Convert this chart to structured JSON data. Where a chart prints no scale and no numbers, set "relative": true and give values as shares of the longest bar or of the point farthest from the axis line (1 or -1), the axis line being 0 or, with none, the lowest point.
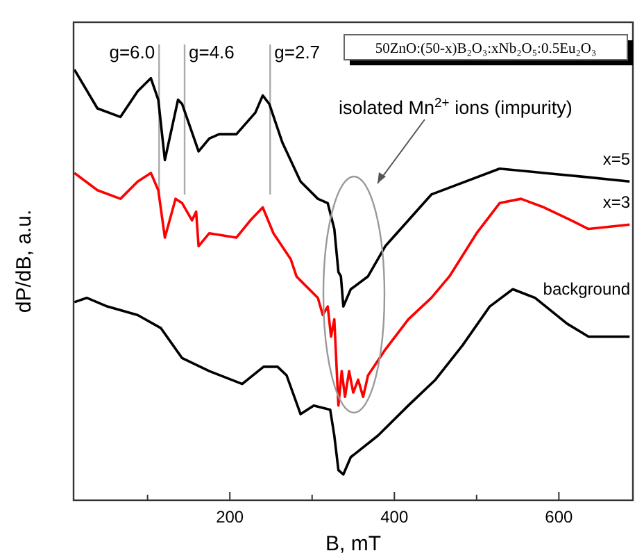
{
  "chart_data": {
    "type": "line",
    "title": "50ZnO:(50-x)B₂O₃:xNb₂O₅:0.5Eu₂O₃",
    "xlabel": "B, mT",
    "ylabel": "dP/dB, a.u.",
    "relative": true,
    "xlim": [
      10,
      690
    ],
    "xticks": [
      {
        "value": 100,
        "label": null
      },
      200,
      {
        "value": 300,
        "label": null
      },
      400,
      {
        "value": 500,
        "label": null
      },
      600
    ],
    "grid": false,
    "marker": "none",
    "line_style": "solid",
    "series": [
      {
        "name": "x=5",
        "color": "#000000",
        "x": [
          11,
          39,
          67,
          88,
          104,
          113,
          121,
          137,
          142,
          162,
          175,
          187,
          208,
          231,
          240,
          248,
          264,
          286,
          307,
          319,
          327,
          332,
          335,
          338,
          347,
          368,
          389,
          445,
          528,
          582,
          636,
          686
        ],
        "values": [
          1.0,
          0.91,
          0.89,
          0.95,
          0.98,
          0.93,
          0.79,
          0.93,
          0.92,
          0.81,
          0.84,
          0.85,
          0.85,
          0.9,
          0.94,
          0.92,
          0.83,
          0.74,
          0.7,
          0.69,
          0.63,
          0.53,
          0.52,
          0.45,
          0.49,
          0.52,
          0.59,
          0.71,
          0.77,
          0.76,
          0.75,
          0.74
        ]
      },
      {
        "name": "x=3",
        "color": "#ff0000",
        "x": [
          11,
          39,
          67,
          88,
          104,
          113,
          121,
          134,
          142,
          154,
          159,
          162,
          175,
          208,
          225,
          240,
          253,
          274,
          281,
          286,
          307,
          313,
          319,
          323,
          327,
          330,
          332,
          336,
          340,
          345,
          350,
          356,
          362,
          368,
          389,
          417,
          445,
          467,
          500,
          528,
          554,
          582,
          615,
          636,
          686
        ],
        "values": [
          0.76,
          0.72,
          0.7,
          0.74,
          0.76,
          0.72,
          0.61,
          0.7,
          0.69,
          0.65,
          0.67,
          0.59,
          0.62,
          0.61,
          0.65,
          0.68,
          0.62,
          0.56,
          0.52,
          0.51,
          0.47,
          0.43,
          0.45,
          0.38,
          0.42,
          0.3,
          0.22,
          0.3,
          0.24,
          0.3,
          0.25,
          0.28,
          0.24,
          0.29,
          0.35,
          0.42,
          0.47,
          0.52,
          0.62,
          0.69,
          0.7,
          0.68,
          0.65,
          0.63,
          0.64
        ]
      },
      {
        "name": "background",
        "color": "#000000",
        "x": [
          11,
          26,
          51,
          88,
          116,
          142,
          175,
          215,
          241,
          258,
          269,
          286,
          302,
          322,
          327,
          332,
          338,
          347,
          380,
          417,
          450,
          483,
          516,
          544,
          571,
          610,
          636,
          686
        ],
        "values": [
          0.46,
          0.47,
          0.45,
          0.43,
          0.4,
          0.33,
          0.3,
          0.27,
          0.31,
          0.31,
          0.29,
          0.2,
          0.22,
          0.21,
          0.15,
          0.07,
          0.06,
          0.1,
          0.15,
          0.22,
          0.28,
          0.36,
          0.45,
          0.49,
          0.47,
          0.41,
          0.38,
          0.38
        ]
      }
    ],
    "ref_lines": [
      {
        "axis": "x",
        "value": 114,
        "color": "#aaaaaa"
      },
      {
        "axis": "x",
        "value": 145,
        "color": "#aaaaaa"
      },
      {
        "axis": "x",
        "value": 249,
        "color": "#aaaaaa"
      }
    ],
    "annotations": [
      "g=6.0",
      "g=4.6",
      "g=2.7",
      "isolated Mn$^{2+}$ ions (impurity)"
    ]
  }
}
